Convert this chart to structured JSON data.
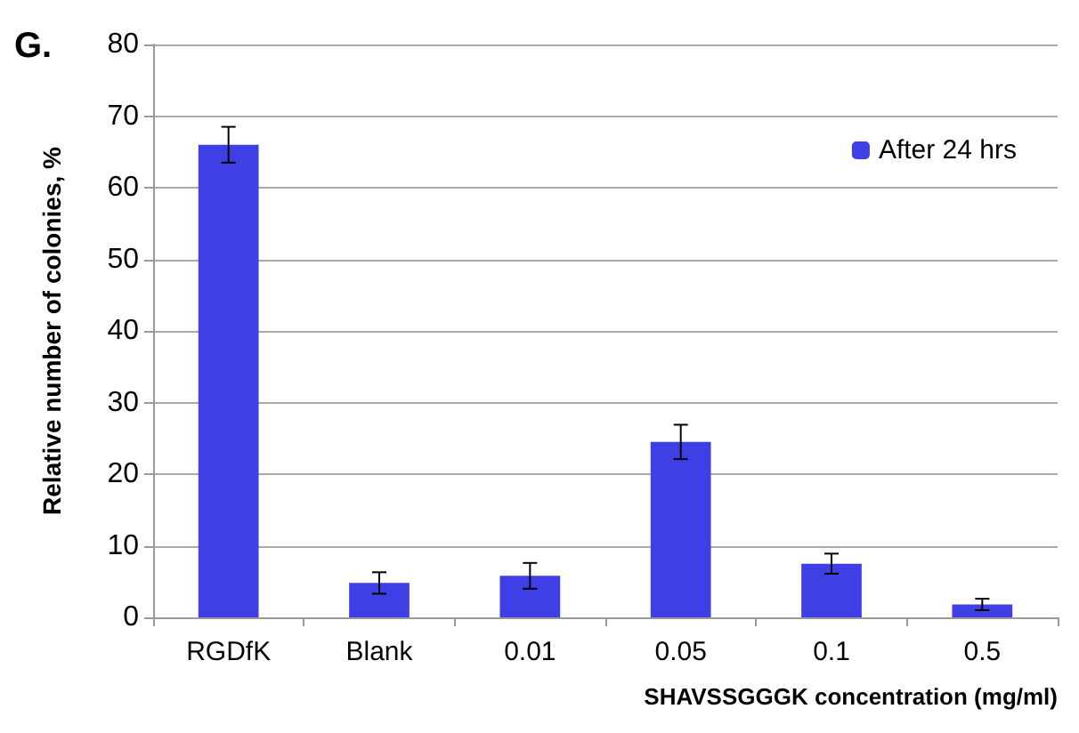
{
  "chart_data": {
    "type": "bar",
    "categories": [
      "RGDfK",
      "Blank",
      "0.01",
      "0.05",
      "0.1",
      "0.5"
    ],
    "series": [
      {
        "name": "After 24 hrs",
        "color": "#3f3fe6",
        "values": [
          66,
          4.8,
          5.8,
          24.5,
          7.5,
          1.8
        ],
        "errors": [
          2.5,
          1.5,
          1.8,
          2.4,
          1.4,
          0.8
        ]
      }
    ],
    "xlabel": "SHAVSSGGGK concentration (mg/ml)",
    "ylabel": "Relative number of colonies, %",
    "ylim": [
      0,
      80
    ],
    "yticks": [
      0,
      10,
      20,
      30,
      40,
      50,
      60,
      70,
      80
    ],
    "annotations": [
      "G."
    ],
    "grid": "y",
    "legend": "top right"
  }
}
